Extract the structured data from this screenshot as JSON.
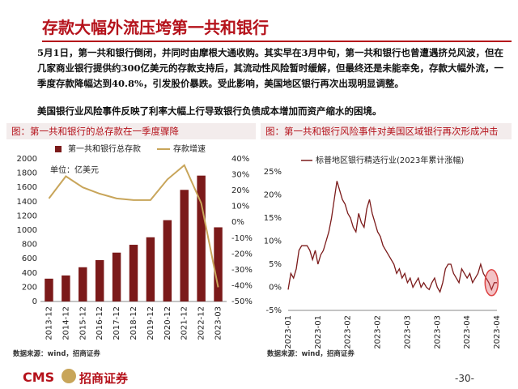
{
  "title": "存款大幅外流压垮第一共和银行",
  "paragraphs": [
    "5月1日，第一共和银行倒闭，并同时由摩根大通收购。其实早在3月中旬，第一共和银行也曾遭遇挤兑风波，但在几家商业银行提供约300亿美元的存款支持后，其流动性风险暂时缓解，但最终还是未能幸免，存款大幅外流，一季度存款降幅达到40.8%，引发股价暴跌。受此影响，美国地区银行再次出现明显调整。",
    "美国银行业风险事件反映了利率大幅上行导致银行负债成本增加而资产缩水的困境。"
  ],
  "chart_data": [
    {
      "type": "combo",
      "title": "图：第一共和银行的总存款在一季度骤降",
      "annotation": "单位：亿美元",
      "source": "数据来源：wind，招商证券",
      "categories": [
        "2013-12",
        "2014-12",
        "2015-12",
        "2016-12",
        "2017-12",
        "2018-12",
        "2019-12",
        "2020-12",
        "2021-12",
        "2022-12",
        "2023-03"
      ],
      "series": [
        {
          "name": "第一共和银行总存款",
          "type": "bar",
          "color": "#7b1a1a",
          "values": [
            320,
            365,
            480,
            580,
            685,
            795,
            900,
            1140,
            1565,
            1765,
            1040
          ]
        },
        {
          "name": "存款增速",
          "type": "line",
          "axis": "y2",
          "color": "#c8a55a",
          "values": [
            15,
            29,
            22,
            18,
            15,
            14,
            14,
            27,
            36,
            12,
            -41
          ]
        }
      ],
      "ylim": [
        0,
        2000
      ],
      "yticks": [
        0,
        200,
        400,
        600,
        800,
        1000,
        1200,
        1400,
        1600,
        1800,
        2000
      ],
      "y2lim": [
        -50,
        40
      ],
      "y2ticks": [
        {
          "value": -50,
          "label": "-50%"
        },
        {
          "value": -40,
          "label": "-40%"
        },
        {
          "value": -30,
          "label": "-30%"
        },
        {
          "value": -20,
          "label": "-20%"
        },
        {
          "value": -10,
          "label": "-10%"
        },
        {
          "value": 0,
          "label": "0%"
        },
        {
          "value": 10,
          "label": "10%"
        },
        {
          "value": 20,
          "label": "20%"
        },
        {
          "value": 30,
          "label": "30%"
        },
        {
          "value": 40,
          "label": "40%"
        }
      ]
    },
    {
      "type": "line",
      "title": "图：第一共和银行风险事件对美国区域银行再次形成冲击",
      "source": "数据来源：wind，招商证券",
      "categories": [
        "2023-01",
        null,
        null,
        null,
        null,
        null,
        null,
        null,
        null,
        null,
        null,
        "2023-01",
        null,
        null,
        null,
        null,
        null,
        null,
        null,
        null,
        null,
        null,
        "2023-02",
        null,
        null,
        null,
        null,
        null,
        null,
        null,
        null,
        null,
        null,
        "2023-02",
        null,
        null,
        null,
        null,
        null,
        null,
        null,
        null,
        null,
        null,
        "2023-03",
        null,
        null,
        null,
        null,
        null,
        null,
        null,
        null,
        null,
        null,
        "2023-03",
        null,
        null,
        null,
        null,
        null,
        null,
        null,
        null,
        null,
        null,
        "2023-04",
        null,
        null,
        null,
        null,
        null,
        null,
        null,
        null,
        null,
        null,
        "2023-04"
      ],
      "series": [
        {
          "name": "标普地区银行精选行业(2023年累计涨幅)",
          "color": "#7b1a1a",
          "values": [
            -0.5,
            3,
            2,
            4,
            8,
            9,
            9,
            9,
            8,
            6,
            8,
            5,
            7,
            8,
            10,
            12,
            15,
            19,
            23,
            21,
            19,
            18,
            16,
            15,
            13,
            12,
            16,
            14,
            13,
            17,
            19,
            16,
            14,
            12,
            11,
            9,
            8,
            7,
            6,
            5,
            3,
            4,
            2,
            3,
            1,
            2,
            0,
            1,
            2,
            0,
            1,
            0,
            -0.5,
            1,
            2,
            0,
            -1,
            1,
            4,
            5,
            5,
            3,
            2,
            1,
            4,
            3,
            2,
            3,
            1,
            2,
            3,
            5,
            3,
            2,
            1,
            -0.5,
            1,
            1
          ]
        }
      ],
      "ylim": [
        -5,
        25
      ],
      "yticks": [
        {
          "value": -5,
          "label": "-5%"
        },
        {
          "value": 0,
          "label": "0%"
        },
        {
          "value": 5,
          "label": "5%"
        },
        {
          "value": 10,
          "label": "10%"
        },
        {
          "value": 15,
          "label": "15%"
        },
        {
          "value": 20,
          "label": "20%"
        },
        {
          "value": 25,
          "label": "25%"
        }
      ]
    }
  ],
  "footer": {
    "logo": "CMS",
    "company": "招商证券",
    "page": "-30-"
  }
}
